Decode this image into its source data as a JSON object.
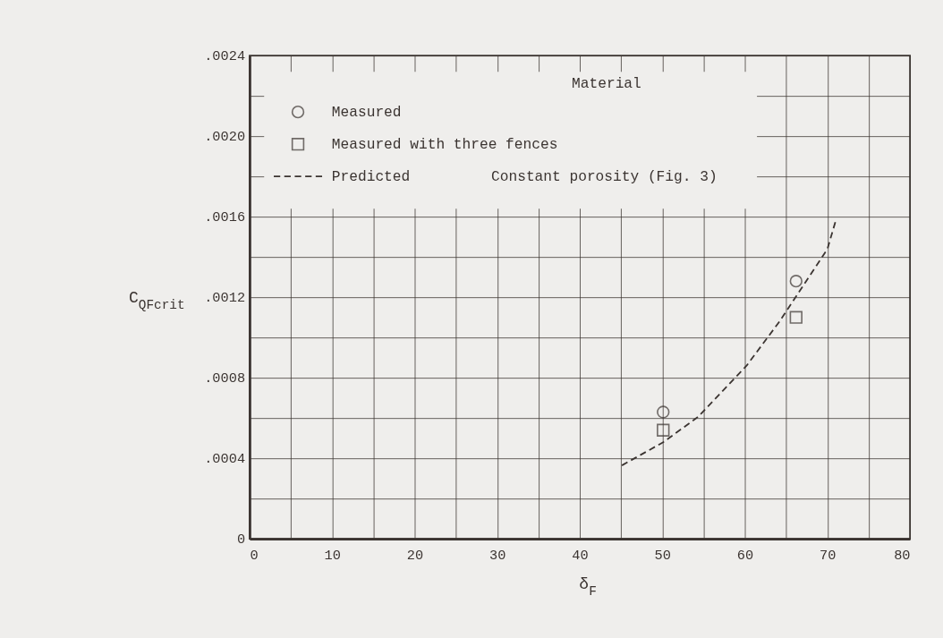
{
  "chart_data": {
    "type": "scatter",
    "xlabel": "δ$_{F}$",
    "ylabel": "C$_{QFcrit}$",
    "xlim": [
      0,
      80
    ],
    "ylim": [
      0,
      0.0024
    ],
    "xticks": [
      0,
      {
        "value": 5,
        "label": null
      },
      10,
      {
        "value": 15,
        "label": null
      },
      20,
      {
        "value": 25,
        "label": null
      },
      30,
      {
        "value": 35,
        "label": null
      },
      40,
      {
        "value": 45,
        "label": null
      },
      50,
      {
        "value": 55,
        "label": null
      },
      60,
      {
        "value": 65,
        "label": null
      },
      70,
      {
        "value": 75,
        "label": null
      },
      80
    ],
    "yticks": [
      0,
      {
        "value": 0.0002,
        "label": null
      },
      {
        "value": 0.0004,
        "label": ".0004"
      },
      {
        "value": 0.0006,
        "label": null
      },
      {
        "value": 0.0008,
        "label": ".0008"
      },
      {
        "value": 0.001,
        "label": null
      },
      {
        "value": 0.0012,
        "label": ".0012"
      },
      {
        "value": 0.0014,
        "label": null
      },
      {
        "value": 0.0016,
        "label": ".0016"
      },
      {
        "value": 0.0018,
        "label": null
      },
      {
        "value": 0.002,
        "label": ".0020"
      },
      {
        "value": 0.0022,
        "label": null
      },
      {
        "value": 0.0024,
        "label": ".0024"
      }
    ],
    "grid": true,
    "legend": "top left",
    "annotations": [
      "Material",
      "Constant porosity (Fig. 3)"
    ],
    "series": [
      {
        "name": "Measured",
        "marker": "circle",
        "color": "#3b3431",
        "x": [
          50.1,
          66.2
        ],
        "values": [
          0.00063,
          0.00128
        ]
      },
      {
        "name": "Measured with three fences",
        "marker": "square",
        "color": "#3b3431",
        "x": [
          50.1,
          66.2
        ],
        "values": [
          0.00054,
          0.0011
        ]
      },
      {
        "name": "Predicted",
        "type": "line",
        "line_style": "dashed",
        "color": "#3b3431",
        "x": [
          45.1,
          50.1,
          54.3,
          60.2,
          64.2,
          70.0,
          71.0
        ],
        "values": [
          0.000365,
          0.00048,
          0.000605,
          0.00086,
          0.00108,
          0.00144,
          0.00158
        ]
      }
    ]
  }
}
